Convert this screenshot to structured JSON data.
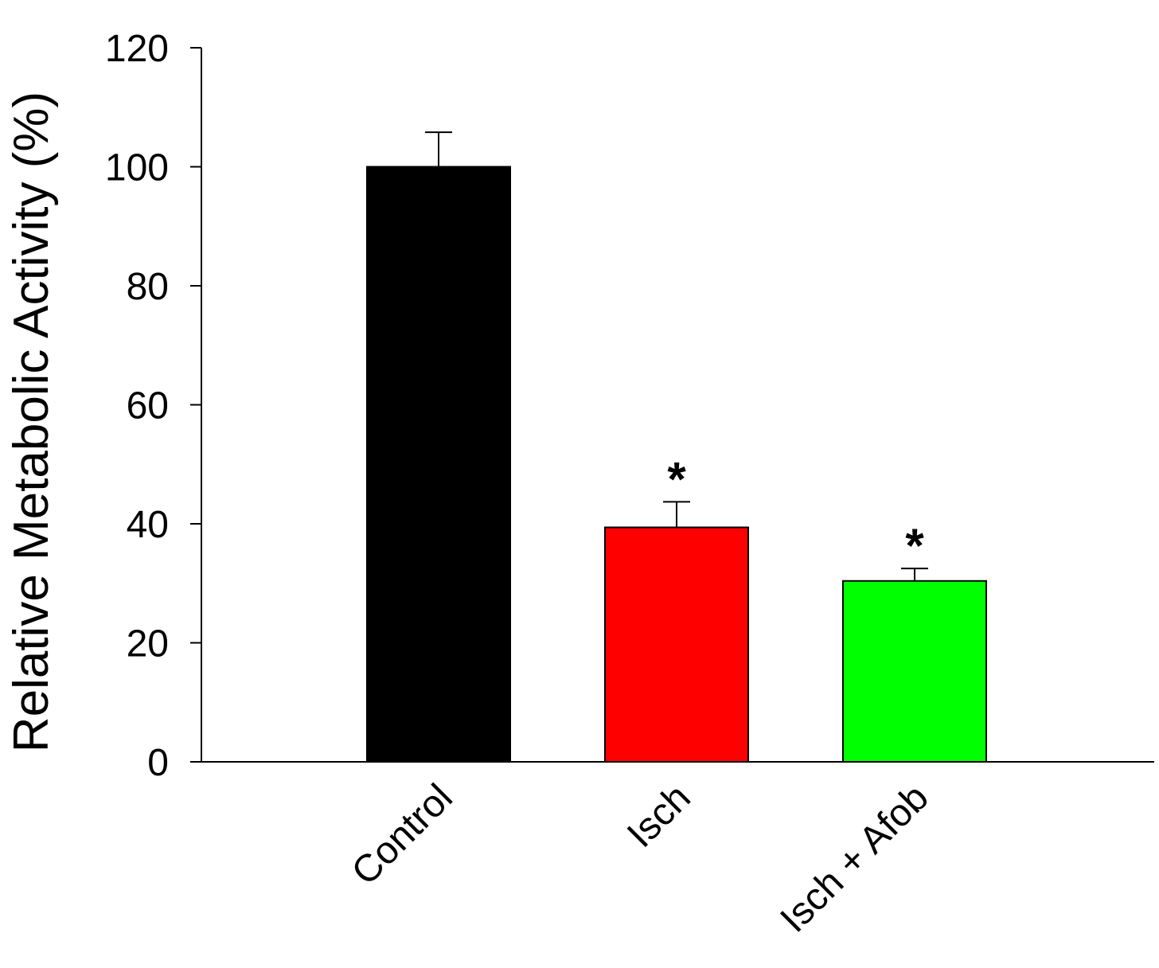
{
  "chart_data": {
    "type": "bar",
    "y_label": "Relative Metabolic Activity (%)",
    "categories": [
      "Control",
      "Isch",
      "Isch + Afob"
    ],
    "values": [
      100,
      39.4,
      30.4
    ],
    "errors": [
      5.8,
      4.3,
      2.1
    ],
    "colors": [
      "#000000",
      "#ff0000",
      "#00ff00"
    ],
    "significance": [
      null,
      "*",
      "*"
    ],
    "ylim": [
      0,
      120
    ],
    "yticks": [
      0,
      20,
      40,
      60,
      80,
      100,
      120
    ],
    "grid": false
  }
}
